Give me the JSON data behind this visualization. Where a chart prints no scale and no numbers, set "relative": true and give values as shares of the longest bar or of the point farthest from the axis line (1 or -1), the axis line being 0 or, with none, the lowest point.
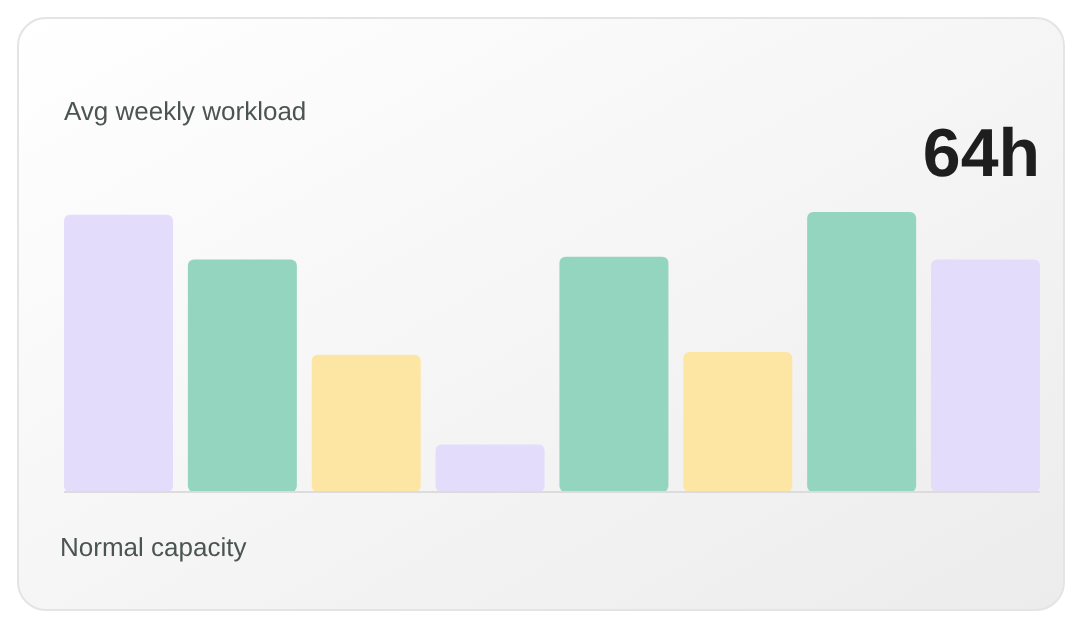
{
  "chart_data": {
    "type": "bar",
    "title": "Avg weekly workload",
    "relative": true,
    "categories": [
      null,
      null,
      null,
      null,
      null,
      null,
      null,
      null
    ],
    "values": [
      0.99,
      0.83,
      0.49,
      0.17,
      0.84,
      0.5,
      1,
      0.83
    ],
    "colors": [
      "#e3dcfb",
      "#94d5bf",
      "#fde5a3",
      "#e3dcfb",
      "#94d5bf",
      "#fde5a3",
      "#94d5bf",
      "#e3dcfb"
    ],
    "annotations": [
      "64h",
      "Normal capacity"
    ]
  }
}
